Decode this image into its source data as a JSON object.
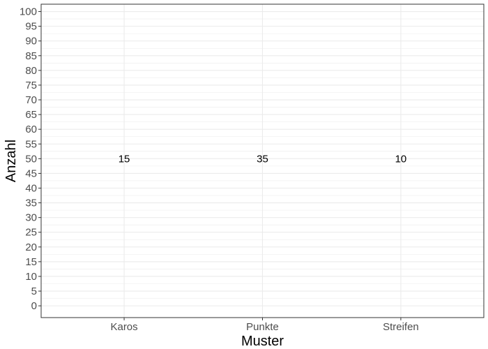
{
  "chart_data": {
    "type": "bar",
    "categories": [
      "Karos",
      "Punkte",
      "Streifen"
    ],
    "values": [
      15,
      35,
      10
    ],
    "data_labels": [
      "15",
      "35",
      "10"
    ],
    "label_y": 50,
    "title": "",
    "xlabel": "Muster",
    "ylabel": "Anzahl",
    "ylim": [
      -4,
      102.5
    ],
    "yticks": [
      0,
      5,
      10,
      15,
      20,
      25,
      30,
      35,
      40,
      45,
      50,
      55,
      60,
      65,
      70,
      75,
      80,
      85,
      90,
      95,
      100
    ],
    "grid": true,
    "legend": "none",
    "colors": {
      "grid": "#ebebeb",
      "panel_border": "#333333",
      "tick_text": "#4d4d4d",
      "text": "#000000"
    }
  }
}
